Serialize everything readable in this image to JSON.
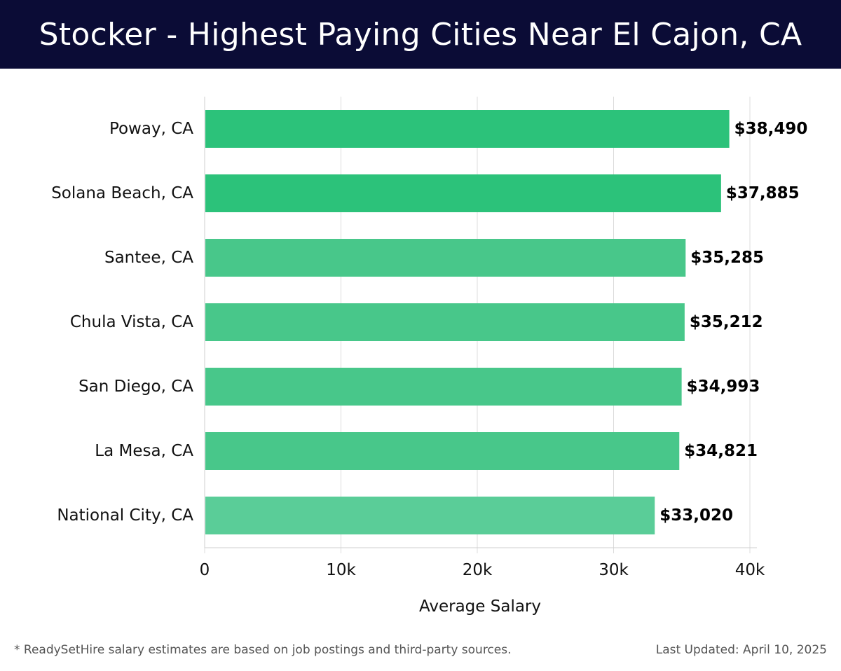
{
  "header": {
    "title": "Stocker - Highest Paying Cities Near El Cajon, CA"
  },
  "chart_data": {
    "type": "bar",
    "orientation": "horizontal",
    "categories": [
      "Poway, CA",
      "Solana Beach, CA",
      "Santee, CA",
      "Chula Vista, CA",
      "San Diego, CA",
      "La Mesa, CA",
      "National City, CA"
    ],
    "values": [
      38490,
      37885,
      35285,
      35212,
      34993,
      34821,
      33020
    ],
    "value_labels": [
      "$38,490",
      "$37,885",
      "$35,285",
      "$35,212",
      "$34,993",
      "$34,821",
      "$33,020"
    ],
    "bar_colors": [
      "#2cc27a",
      "#2cc27a",
      "#48c78a",
      "#48c78a",
      "#48c78a",
      "#48c78a",
      "#5acd98"
    ],
    "xlabel": "Average Salary",
    "xlim": [
      0,
      40000
    ],
    "ticks": [
      0,
      10000,
      20000,
      30000,
      40000
    ],
    "tick_labels": [
      "0",
      "10k",
      "20k",
      "30k",
      "40k"
    ],
    "grid": true
  },
  "footer": {
    "note": "* ReadySetHire salary estimates are based on job postings and third-party sources.",
    "updated": "Last Updated: April 10, 2025"
  }
}
